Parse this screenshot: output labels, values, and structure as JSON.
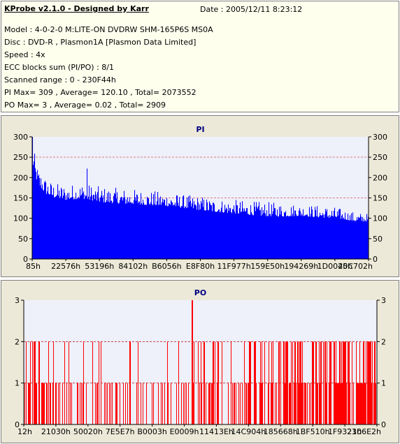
{
  "header": {
    "title": "KProbe v2.1.0 - Designed by Karr",
    "date": "Date : 2005/12/11 8:23:12",
    "lines": [
      "Model : 4-0-2-0 M:LITE-ON DVDRW SHM-165P6S MS0A",
      "Disc : DVD-R , Plasmon1A [Plasmon Data Limited]",
      "Speed : 4x",
      "ECC blocks sum (PI/PO) : 8/1",
      "Scanned range : 0 - 230F44h",
      "PI Max= 309 , Average= 120.10 , Total= 2073552",
      "PO Max= 3 , Average= 0.02 , Total= 2909"
    ]
  },
  "colors": {
    "plot_bg": "#eef0fa",
    "panel_bg": "#ece9d8",
    "pi_fill": "#0000ff",
    "po_fill": "#ff0000",
    "title": "#000080",
    "grid_pi": "#e08080",
    "grid_po": "#c04040"
  },
  "chart_data": [
    {
      "type": "area",
      "title": "PI",
      "xlabel": "",
      "ylabel": "",
      "ylim": [
        0,
        300
      ],
      "yticks": [
        0,
        50,
        100,
        150,
        200,
        250,
        300
      ],
      "grid": "dashed horizontal at 150 and 250",
      "x_tick_labels": [
        "85h",
        "22576h",
        "53196h",
        "84102h",
        "B6056h",
        "E8F80h",
        "11F977h",
        "159E50h",
        "194269h",
        "1D0045h",
        "20C702h"
      ],
      "envelope": {
        "x_fraction": [
          0,
          0.003,
          0.01,
          0.02,
          0.04,
          0.06,
          0.1,
          0.15,
          0.2,
          0.25,
          0.3,
          0.35,
          0.4,
          0.45,
          0.5,
          0.55,
          0.6,
          0.65,
          0.7,
          0.75,
          0.8,
          0.85,
          0.9,
          0.93,
          0.96,
          1.0
        ],
        "mean": [
          230,
          225,
          200,
          180,
          160,
          152,
          145,
          148,
          140,
          136,
          135,
          132,
          130,
          125,
          120,
          115,
          112,
          108,
          105,
          104,
          106,
          102,
          100,
          97,
          92,
          92
        ],
        "peak": [
          309,
          280,
          235,
          218,
          200,
          188,
          182,
          188,
          178,
          175,
          172,
          168,
          165,
          158,
          155,
          148,
          146,
          142,
          140,
          138,
          135,
          132,
          128,
          122,
          115,
          112
        ]
      },
      "notable_spikes": [
        {
          "x_fraction": 0.163,
          "value": 222
        }
      ]
    },
    {
      "type": "bar",
      "title": "PO",
      "xlabel": "",
      "ylabel": "",
      "ylim": [
        0,
        3
      ],
      "yticks": [
        0,
        1,
        2,
        3
      ],
      "grid": "dashed horizontal at 1 and 2",
      "x_tick_labels": [
        "12h",
        "21030h",
        "50020h",
        "7E5E7h",
        "B0003h",
        "E0009h",
        "11413Eh",
        "14C904h",
        "185668h",
        "1BF510h",
        "1F9321h",
        "2306E2h"
      ],
      "max": {
        "x_fraction": 0.475,
        "value": 3
      },
      "density": {
        "x_fraction": [
          0,
          0.1,
          0.2,
          0.3,
          0.4,
          0.5,
          0.6,
          0.7,
          0.8,
          0.9,
          1.0
        ],
        "events_per_column": [
          0.55,
          0.4,
          0.3,
          0.3,
          0.35,
          0.35,
          0.45,
          0.55,
          0.65,
          0.7,
          0.7
        ],
        "share_at_2": [
          0.4,
          0.3,
          0.2,
          0.2,
          0.25,
          0.3,
          0.45,
          0.55,
          0.6,
          0.6,
          0.6
        ]
      }
    }
  ]
}
